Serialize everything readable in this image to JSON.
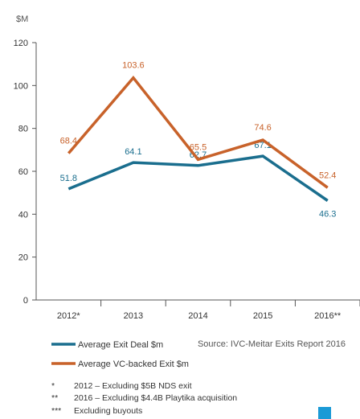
{
  "chart_data": {
    "type": "line",
    "title": "",
    "ylabel": "$M",
    "xlabel": "",
    "categories": [
      "2012*",
      "2013",
      "2014",
      "2015",
      "2016**"
    ],
    "ylim": [
      0,
      120
    ],
    "yticks": [
      0,
      20,
      40,
      60,
      80,
      100,
      120
    ],
    "grid": false,
    "legend_position": "bottom-left",
    "series": [
      {
        "name": "Average Exit Deal $m",
        "values": [
          51.8,
          64.1,
          62.7,
          67.1,
          46.3
        ],
        "labels": [
          "51.8",
          "64.1",
          "62.7",
          "67.1",
          "46.3"
        ],
        "color": "#1a6e8e"
      },
      {
        "name": "Average VC-backed Exit $m",
        "values": [
          68.4,
          103.6,
          65.5,
          74.6,
          52.4
        ],
        "labels": [
          "68.4",
          "103.6",
          "65.5",
          "74.6",
          "52.4"
        ],
        "color": "#c8622a"
      }
    ]
  },
  "source": "Source: IVC-Meitar Exits Report 2016",
  "footnotes": [
    {
      "mark": "*",
      "text": "2012 – Excluding $5B NDS exit"
    },
    {
      "mark": "**",
      "text": "2016 – Excluding $4.4B Playtika acquisition"
    },
    {
      "mark": "***",
      "text": "Excluding buyouts"
    }
  ],
  "colors": {
    "axis": "#555555",
    "corner_square": "#1b9ad6"
  }
}
